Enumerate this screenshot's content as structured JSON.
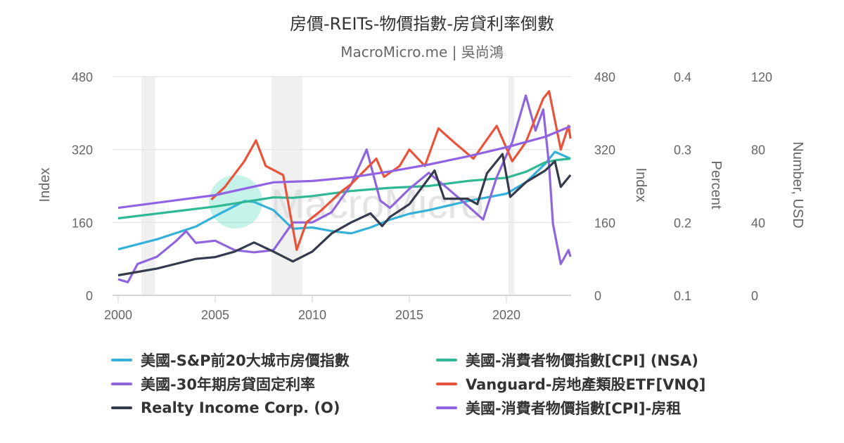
{
  "chart_data": {
    "type": "line",
    "title": "房價-REITs-物價指數-房貸利率倒數",
    "subtitle": "MacroMicro.me | 吳尚鴻",
    "watermark": "MacroMicro",
    "x_ticks": [
      "2000",
      "2005",
      "2010",
      "2015",
      "2020"
    ],
    "xlim": [
      2000,
      2023.4
    ],
    "grid": true,
    "legend_position": "bottom",
    "axes": [
      {
        "id": "index_left",
        "label": "Index",
        "side": "left",
        "range": [
          0,
          480
        ],
        "ticks": [
          "0",
          "160",
          "320",
          "480"
        ]
      },
      {
        "id": "index_right",
        "label": "Index",
        "side": "right",
        "range": [
          0,
          480
        ],
        "ticks": [
          "0",
          "160",
          "320",
          "480"
        ]
      },
      {
        "id": "percent",
        "label": "Percent",
        "side": "right",
        "range": [
          0.1,
          0.4
        ],
        "ticks": [
          "0.1",
          "0.2",
          "0.3",
          "0.4"
        ]
      },
      {
        "id": "usd",
        "label": "Number, USD",
        "side": "right",
        "range": [
          0,
          120
        ],
        "ticks": [
          "0",
          "40",
          "80",
          "120"
        ]
      }
    ],
    "recessions": [
      [
        2001.2,
        2001.9
      ],
      [
        2007.9,
        2009.5
      ],
      [
        2020.1,
        2020.4
      ]
    ],
    "series": [
      {
        "name": "美國-S&P前20大城市房價指數",
        "axis": "index_left",
        "color": "#35b1d8",
        "x": [
          2000,
          2002,
          2004,
          2005,
          2006.5,
          2007,
          2008,
          2009,
          2010,
          2011,
          2012,
          2013,
          2014,
          2015,
          2016,
          2017,
          2018,
          2019,
          2020,
          2021,
          2022,
          2022.5,
          2023.3
        ],
        "y": [
          101,
          123,
          151,
          174,
          207,
          205,
          187,
          146,
          149,
          141,
          136,
          149,
          166,
          179,
          187,
          197,
          207,
          215,
          223,
          248,
          289,
          315,
          300
        ]
      },
      {
        "name": "美國-消費者物價指數[CPI] (NSA)",
        "axis": "index_left",
        "color": "#2fb894",
        "x": [
          2000,
          2005,
          2008,
          2009,
          2010,
          2012,
          2014,
          2016,
          2018,
          2020,
          2021,
          2022,
          2022.6,
          2023.3
        ],
        "y": [
          169,
          195,
          215,
          214,
          218,
          229,
          236,
          240,
          251,
          258,
          271,
          292,
          297,
          300
        ]
      },
      {
        "name": "美國-30年期房貸固定利率",
        "axis": "percent",
        "color": "#8e65dd",
        "x": [
          2000,
          2000.5,
          2001,
          2002,
          2003,
          2003.5,
          2004,
          2005,
          2006,
          2007,
          2008,
          2009,
          2010,
          2011,
          2012,
          2012.8,
          2013.5,
          2014,
          2015,
          2016,
          2017,
          2018,
          2018.8,
          2019.5,
          2020.3,
          2021,
          2021.5,
          2021.9,
          2022.2,
          2022.4,
          2022.8,
          2023.2,
          2023.3
        ],
        "y": [
          0.122,
          0.118,
          0.143,
          0.153,
          0.175,
          0.188,
          0.172,
          0.175,
          0.162,
          0.159,
          0.162,
          0.2,
          0.2,
          0.214,
          0.252,
          0.3,
          0.23,
          0.22,
          0.246,
          0.268,
          0.246,
          0.223,
          0.204,
          0.262,
          0.31,
          0.374,
          0.326,
          0.355,
          0.278,
          0.198,
          0.143,
          0.162,
          0.153
        ]
      },
      {
        "name": "Vanguard-房地產類股ETF[VNQ]",
        "axis": "usd",
        "color": "#e8533a",
        "x": [
          2004.8,
          2005.5,
          2006.5,
          2007.1,
          2007.6,
          2008.5,
          2009.2,
          2009.7,
          2010.5,
          2011.5,
          2012,
          2013.3,
          2013.7,
          2014.5,
          2015,
          2015.8,
          2016.5,
          2017.3,
          2018.3,
          2019.5,
          2020.3,
          2021,
          2021.9,
          2022.2,
          2022.8,
          2023.2,
          2023.3
        ],
        "y": [
          52.5,
          59.5,
          73.6,
          85,
          71,
          66,
          25,
          40,
          47,
          57,
          61,
          75,
          65,
          71,
          80,
          71,
          91.6,
          84,
          75,
          93,
          73.6,
          84,
          108,
          112,
          80,
          93,
          86
        ]
      },
      {
        "name": "Realty Income Corp. (O)",
        "axis": "usd",
        "color": "#363a4d",
        "x": [
          2000,
          2002,
          2004,
          2005,
          2006,
          2007,
          2008,
          2009,
          2010,
          2011,
          2012,
          2013,
          2013.6,
          2014,
          2015,
          2016.3,
          2016.8,
          2018,
          2018.5,
          2019,
          2019.8,
          2020.2,
          2021,
          2022,
          2022.5,
          2022.8,
          2023.3
        ],
        "y": [
          11,
          14.7,
          20,
          21,
          24,
          29,
          24,
          18.6,
          24,
          34,
          40,
          45,
          38,
          43,
          50,
          68.5,
          53,
          53,
          50,
          67,
          77.5,
          54,
          62,
          68.5,
          73.6,
          59.5,
          66
        ]
      },
      {
        "name": "美國-消費者物價指數[CPI]-房租",
        "axis": "index_left",
        "color": "#9163e3",
        "x": [
          2000,
          2005,
          2008,
          2010,
          2012,
          2014,
          2016,
          2018,
          2020,
          2022,
          2023.3
        ],
        "y": [
          192,
          220,
          248,
          251,
          259,
          272,
          287,
          305,
          325,
          348,
          371
        ]
      }
    ]
  }
}
